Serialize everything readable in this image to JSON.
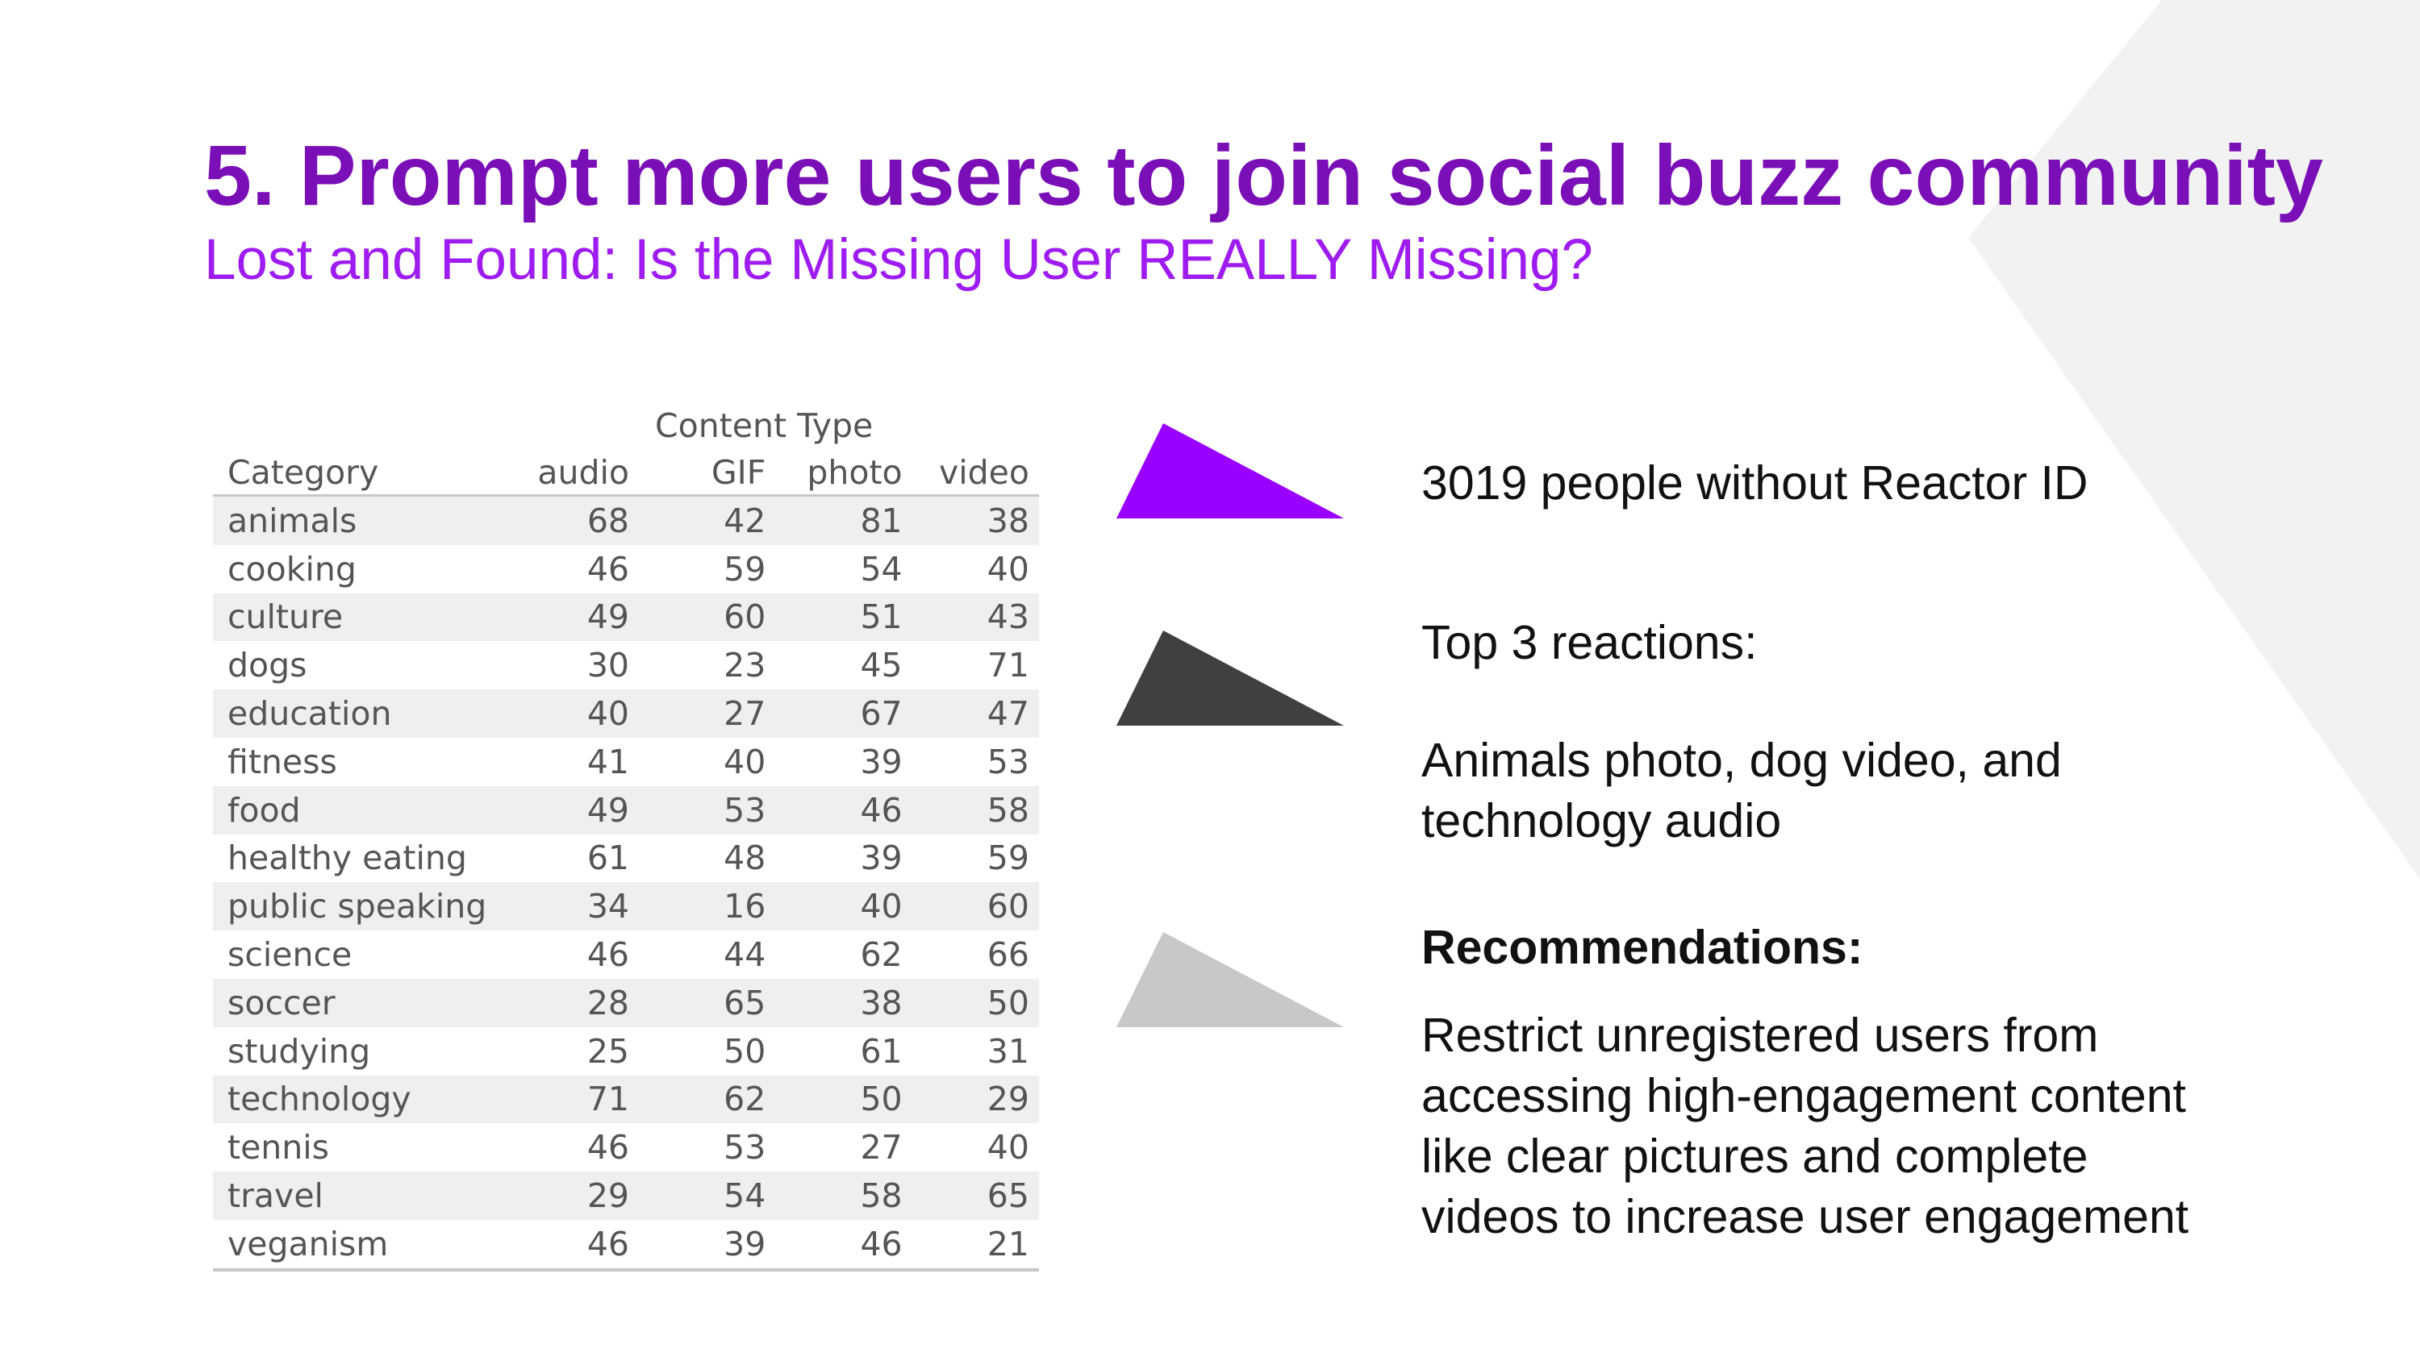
{
  "slide": {
    "title": "5. Prompt more users to join social buzz community",
    "subtitle": "Lost and Found: Is the Missing User REALLY Missing?",
    "colors": {
      "title": "#7a0fb8",
      "subtitle": "#9e1cf0",
      "triangle_1": "#9a00ff",
      "triangle_2": "#404040",
      "triangle_3": "#c8c8c8",
      "background_shape": "#f2f2f2"
    }
  },
  "chart_data": {
    "type": "table",
    "column_group_label": "Content Type",
    "row_header": "Category",
    "columns": [
      "audio",
      "GIF",
      "photo",
      "video"
    ],
    "rows": [
      {
        "category": "animals",
        "values": [
          68,
          42,
          81,
          38
        ]
      },
      {
        "category": "cooking",
        "values": [
          46,
          59,
          54,
          40
        ]
      },
      {
        "category": "culture",
        "values": [
          49,
          60,
          51,
          43
        ]
      },
      {
        "category": "dogs",
        "values": [
          30,
          23,
          45,
          71
        ]
      },
      {
        "category": "education",
        "values": [
          40,
          27,
          67,
          47
        ]
      },
      {
        "category": "fitness",
        "values": [
          41,
          40,
          39,
          53
        ]
      },
      {
        "category": "food",
        "values": [
          49,
          53,
          46,
          58
        ]
      },
      {
        "category": "healthy eating",
        "values": [
          61,
          48,
          39,
          59
        ]
      },
      {
        "category": "public speaking",
        "values": [
          34,
          16,
          40,
          60
        ]
      },
      {
        "category": "science",
        "values": [
          46,
          44,
          62,
          66
        ]
      },
      {
        "category": "soccer",
        "values": [
          28,
          65,
          38,
          50
        ]
      },
      {
        "category": "studying",
        "values": [
          25,
          50,
          61,
          31
        ]
      },
      {
        "category": "technology",
        "values": [
          71,
          62,
          50,
          29
        ]
      },
      {
        "category": "tennis",
        "values": [
          46,
          53,
          27,
          40
        ]
      },
      {
        "category": "travel",
        "values": [
          29,
          54,
          58,
          65
        ]
      },
      {
        "category": "veganism",
        "values": [
          46,
          39,
          46,
          21
        ]
      }
    ]
  },
  "findings": {
    "item1": "3019 people without Reactor ID",
    "item2_heading": "Top 3 reactions:",
    "item2_line1": "Animals photo, dog video, and",
    "item2_line2": "technology audio",
    "item3_heading": "Recommendations:",
    "item3_line1": "Restrict unregistered users from",
    "item3_line2": "accessing high-engagement content",
    "item3_line3": "like clear pictures and complete",
    "item3_line4": "videos to increase user engagement"
  }
}
